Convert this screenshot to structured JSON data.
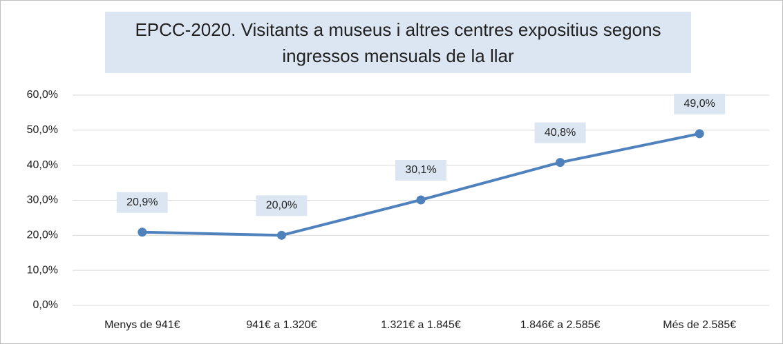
{
  "chart_data": {
    "type": "line",
    "title": "EPCC-2020. Visitants a museus i altres centres expositius segons ingressos mensuals de la llar",
    "categories": [
      "Menys de 941€",
      "941€ a 1.320€",
      "1.321€ a 1.845€",
      "1.846€ a 2.585€",
      "Més de 2.585€"
    ],
    "series": [
      {
        "name": "Visitants",
        "color": "#4f81bd",
        "values": [
          20.9,
          20.0,
          30.1,
          40.8,
          49.0
        ],
        "value_labels": [
          "20,9%",
          "20,0%",
          "30,1%",
          "40,8%",
          "49,0%"
        ]
      }
    ],
    "ylim": [
      0,
      60
    ],
    "yticks": [
      {
        "value": 0,
        "label": "0,0%"
      },
      {
        "value": 10,
        "label": "10,0%"
      },
      {
        "value": 20,
        "label": "20,0%"
      },
      {
        "value": 30,
        "label": "30,0%"
      },
      {
        "value": 40,
        "label": "40,0%"
      },
      {
        "value": 50,
        "label": "50,0%"
      },
      {
        "value": 60,
        "label": "60,0%"
      }
    ],
    "grid": true
  }
}
